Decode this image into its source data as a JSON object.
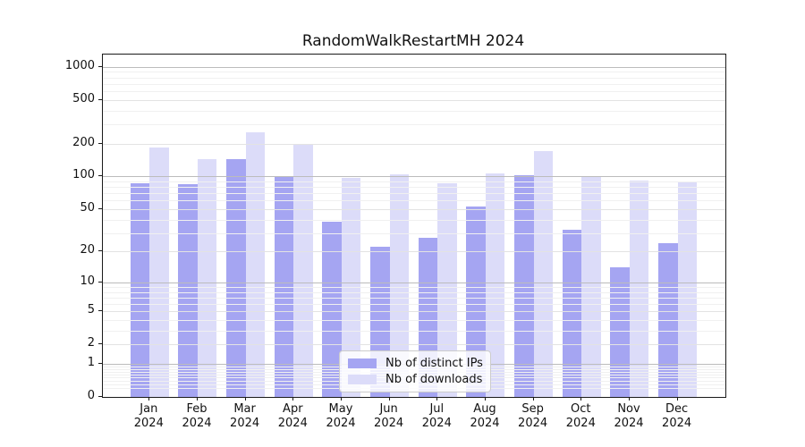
{
  "title": "RandomWalkRestartMH 2024",
  "chart_data": {
    "type": "bar",
    "title": "RandomWalkRestartMH 2024",
    "categories": [
      "Jan",
      "Feb",
      "Mar",
      "Apr",
      "May",
      "Jun",
      "Jul",
      "Aug",
      "Sep",
      "Oct",
      "Nov",
      "Dec"
    ],
    "category_year": "2024",
    "series": [
      {
        "name": "Nb of distinct IPs",
        "color": "#a5a5f2",
        "values": [
          87,
          85,
          143,
          98,
          38,
          22,
          27,
          53,
          103,
          32,
          14,
          24
        ]
      },
      {
        "name": "Nb of downloads",
        "color": "#dcdcf9",
        "values": [
          185,
          145,
          255,
          195,
          97,
          105,
          87,
          107,
          170,
          101,
          92,
          90
        ]
      }
    ],
    "yscale": "log10(1+x)",
    "y_ticks": [
      0,
      1,
      2,
      5,
      10,
      20,
      50,
      100,
      200,
      500,
      1000
    ],
    "ylim": [
      0,
      1300
    ],
    "grid": true,
    "legend_position": "lower center"
  },
  "colors": {
    "major_grid": "#bcbcbc",
    "labeled_grid": "#e3e3e3",
    "minor_grid": "#f0f0f0",
    "spine": "#1a1a1a",
    "text": "#111111"
  }
}
